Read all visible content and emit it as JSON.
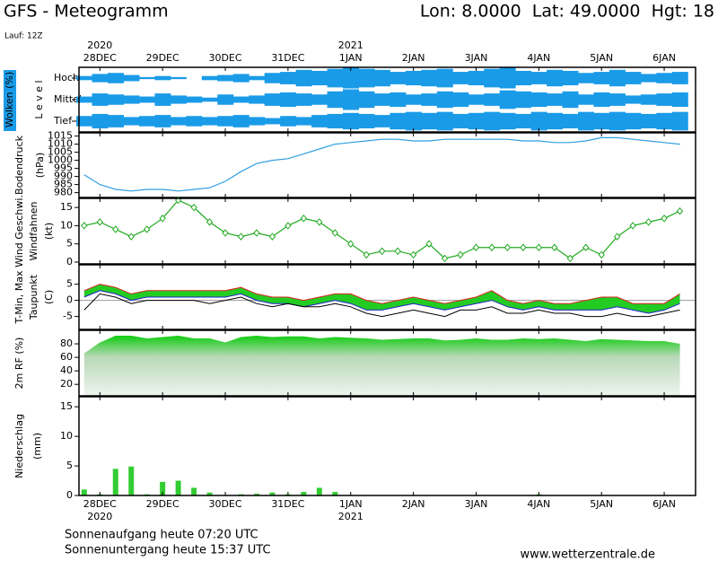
{
  "header": {
    "title": "GFS - Meteogramm",
    "location": "Lon: 8.0000  Lat: 49.0000  Hgt: 18",
    "run": "Lauf: 12Z"
  },
  "time_axis": {
    "xlim": [
      -8,
      228
    ],
    "xticks": [
      {
        "value": 0,
        "label": "28DEC"
      },
      {
        "value": 24,
        "label": "29DEC"
      },
      {
        "value": 48,
        "label": "30DEC"
      },
      {
        "value": 72,
        "label": "31DEC"
      },
      {
        "value": 96,
        "label": "1JAN"
      },
      {
        "value": 120,
        "label": "2JAN"
      },
      {
        "value": 144,
        "label": "3JAN"
      },
      {
        "value": 168,
        "label": "4JAN"
      },
      {
        "value": 192,
        "label": "5JAN"
      },
      {
        "value": 216,
        "label": "6JAN"
      }
    ],
    "year_labels": [
      {
        "value": 0,
        "label": "2020"
      },
      {
        "value": 96,
        "label": "2021"
      }
    ]
  },
  "chart_data": [
    {
      "type": "cloud",
      "ylabel": "Wolken (%)",
      "ylabel2": "L e v e l",
      "x": [
        -6,
        0,
        6,
        12,
        18,
        24,
        30,
        36,
        42,
        48,
        54,
        60,
        66,
        72,
        78,
        84,
        90,
        96,
        102,
        108,
        114,
        120,
        126,
        132,
        138,
        144,
        150,
        156,
        162,
        168,
        174,
        180,
        186,
        192,
        198,
        204,
        210,
        216,
        222
      ],
      "series": [
        {
          "name": "Hoch",
          "color": "#1a9be8",
          "values": [
            20,
            40,
            50,
            30,
            10,
            20,
            10,
            0,
            20,
            30,
            40,
            20,
            50,
            60,
            80,
            70,
            90,
            100,
            90,
            80,
            60,
            70,
            80,
            90,
            60,
            70,
            90,
            100,
            70,
            60,
            80,
            70,
            50,
            60,
            80,
            60,
            40,
            50,
            60
          ]
        },
        {
          "name": "Mittel",
          "color": "#1a9be8",
          "values": [
            30,
            60,
            50,
            40,
            30,
            60,
            40,
            30,
            20,
            50,
            30,
            40,
            60,
            70,
            60,
            50,
            80,
            100,
            80,
            60,
            70,
            50,
            60,
            80,
            70,
            50,
            60,
            90,
            80,
            70,
            60,
            80,
            50,
            70,
            60,
            40,
            50,
            60,
            70
          ]
        },
        {
          "name": "Tief",
          "color": "#1a9be8",
          "values": [
            50,
            70,
            60,
            40,
            50,
            60,
            40,
            50,
            40,
            50,
            60,
            40,
            30,
            50,
            40,
            60,
            70,
            80,
            70,
            60,
            80,
            90,
            80,
            90,
            70,
            80,
            90,
            80,
            70,
            90,
            80,
            70,
            90,
            80,
            90,
            80,
            70,
            80,
            90
          ]
        }
      ]
    },
    {
      "type": "line",
      "ylabel": "Bodendruck",
      "ylabel2": "(hPa)",
      "color": "#2f9fe0",
      "x": [
        -6,
        0,
        6,
        12,
        18,
        24,
        30,
        36,
        42,
        48,
        54,
        60,
        66,
        72,
        78,
        84,
        90,
        96,
        102,
        108,
        114,
        120,
        126,
        132,
        138,
        144,
        150,
        156,
        162,
        168,
        174,
        180,
        186,
        192,
        198,
        204,
        210,
        216,
        222
      ],
      "values": [
        991,
        985,
        982,
        981,
        982,
        982,
        981,
        982,
        983,
        987,
        993,
        998,
        1000,
        1001,
        1004,
        1007,
        1010,
        1011,
        1012,
        1013,
        1013,
        1012,
        1012,
        1013,
        1013,
        1013,
        1013,
        1013,
        1012,
        1012,
        1011,
        1011,
        1012,
        1014,
        1014,
        1013,
        1012,
        1011,
        1010
      ],
      "ylim": [
        977,
        1017
      ],
      "yticks": [
        980,
        985,
        990,
        995,
        1000,
        1005,
        1010,
        1015
      ]
    },
    {
      "type": "line",
      "ylabel": "Wind Geschwi.",
      "ylabel2": "Windfahnen",
      "ylabel3": "(kt)",
      "color": "#22aa22",
      "marker": "diamond",
      "x": [
        -6,
        0,
        6,
        12,
        18,
        24,
        30,
        36,
        42,
        48,
        54,
        60,
        66,
        72,
        78,
        84,
        90,
        96,
        102,
        108,
        114,
        120,
        126,
        132,
        138,
        144,
        150,
        156,
        162,
        168,
        174,
        180,
        186,
        192,
        198,
        204,
        210,
        216,
        222
      ],
      "values": [
        10,
        11,
        9,
        7,
        9,
        12,
        17,
        15,
        11,
        8,
        7,
        8,
        7,
        10,
        12,
        11,
        8,
        5,
        2,
        3,
        3,
        2,
        5,
        1,
        2,
        4,
        4,
        4,
        4,
        4,
        4,
        1,
        4,
        2,
        7,
        10,
        11,
        12,
        14
      ],
      "ylim": [
        -0.5,
        17.5
      ],
      "yticks": [
        0,
        5,
        10,
        15
      ]
    },
    {
      "type": "range",
      "ylabel": "T-Min, Max",
      "ylabel2": "Taupunkt",
      "ylabel3": "(C)",
      "fill": "#22cc22",
      "x": [
        -6,
        0,
        6,
        12,
        18,
        24,
        30,
        36,
        42,
        48,
        54,
        60,
        66,
        72,
        78,
        84,
        90,
        96,
        102,
        108,
        114,
        120,
        126,
        132,
        138,
        144,
        150,
        156,
        162,
        168,
        174,
        180,
        186,
        192,
        198,
        204,
        210,
        216,
        222
      ],
      "series": [
        {
          "name": "T-Min",
          "color": "#2222cc",
          "values": [
            1,
            3,
            2,
            0,
            1,
            1,
            1,
            1,
            1,
            1,
            2,
            0,
            -1,
            -1,
            -2,
            -1,
            0,
            -1,
            -3,
            -3,
            -2,
            -1,
            -2,
            -3,
            -2,
            -1,
            0,
            -2,
            -3,
            -2,
            -3,
            -3,
            -3,
            -3,
            -2,
            -3,
            -4,
            -3,
            -1
          ]
        },
        {
          "name": "Max",
          "color": "#dd2222",
          "values": [
            3,
            5,
            4,
            2,
            3,
            3,
            3,
            3,
            3,
            3,
            4,
            2,
            1,
            1,
            0,
            1,
            2,
            2,
            0,
            -1,
            0,
            1,
            0,
            -1,
            0,
            1,
            3,
            0,
            -1,
            0,
            -1,
            -1,
            0,
            1,
            1,
            -1,
            -1,
            -1,
            2
          ]
        },
        {
          "name": "Taupunkt",
          "color": "#000000",
          "values": [
            -3,
            2,
            1,
            -1,
            0,
            0,
            0,
            0,
            -1,
            0,
            1,
            -1,
            -2,
            -1,
            -2,
            -2,
            -1,
            -2,
            -4,
            -5,
            -4,
            -3,
            -4,
            -5,
            -3,
            -3,
            -2,
            -4,
            -4,
            -3,
            -4,
            -4,
            -5,
            -5,
            -4,
            -5,
            -5,
            -4,
            -3
          ]
        }
      ],
      "ylim": [
        -9,
        11
      ],
      "yticks": [
        -5,
        0,
        5
      ]
    },
    {
      "type": "area",
      "ylabel": "2m RF (%)",
      "color": "#11cc11",
      "x": [
        -6,
        0,
        6,
        12,
        18,
        24,
        30,
        36,
        42,
        48,
        54,
        60,
        66,
        72,
        78,
        84,
        90,
        96,
        102,
        108,
        114,
        120,
        126,
        132,
        138,
        144,
        150,
        156,
        162,
        168,
        174,
        180,
        186,
        192,
        198,
        204,
        210,
        216,
        222
      ],
      "values": [
        66,
        82,
        92,
        92,
        88,
        90,
        92,
        88,
        88,
        82,
        90,
        92,
        90,
        91,
        91,
        88,
        90,
        89,
        88,
        86,
        87,
        88,
        88,
        85,
        86,
        88,
        86,
        86,
        88,
        87,
        88,
        86,
        84,
        87,
        86,
        85,
        84,
        84,
        80
      ],
      "ylim": [
        3,
        100
      ],
      "yticks": [
        20,
        40,
        60,
        80
      ]
    },
    {
      "type": "bar",
      "ylabel": "Niederschlag",
      "ylabel2": "(mm)",
      "color": "#33cc33",
      "x": [
        -6,
        0,
        6,
        12,
        18,
        24,
        30,
        36,
        42,
        48,
        54,
        60,
        66,
        72,
        78,
        84,
        90,
        96,
        102,
        108,
        114,
        120,
        126,
        132,
        138,
        144,
        150,
        156,
        162,
        168,
        174,
        180,
        186,
        192,
        198,
        204,
        210,
        216,
        222
      ],
      "values": [
        1,
        0.2,
        4.5,
        4.9,
        0.2,
        2.3,
        2.5,
        1.3,
        0.5,
        0,
        0.2,
        0.3,
        0.5,
        0.2,
        0.6,
        1.3,
        0.6,
        0,
        0,
        0,
        0,
        0,
        0,
        0,
        0,
        0,
        0,
        0,
        0,
        0.2,
        0,
        0,
        0,
        0,
        0,
        0,
        0,
        0,
        0
      ],
      "ylim": [
        0,
        16.7
      ],
      "yticks": [
        0,
        5,
        10,
        15
      ]
    }
  ],
  "footer": {
    "sunrise": "Sonnenaufgang heute 07:20 UTC",
    "sunset": "Sonnenuntergang heute 15:37 UTC",
    "source": "www.wetterzentrale.de"
  }
}
